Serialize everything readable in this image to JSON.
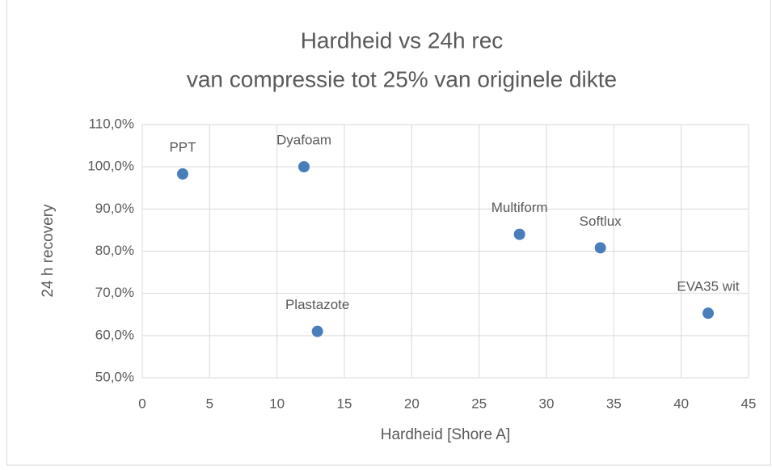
{
  "chart_data": {
    "type": "scatter",
    "title": "Hardheid vs 24h rec",
    "subtitle": "van compressie tot 25% van originele dikte",
    "x_label": "Hardheid [Shore A]",
    "y_label": "24 h recovery",
    "color": "#4a7ebb",
    "labels": [
      "PPT",
      "Dyafoam",
      "Plastazote",
      "Multiform",
      "Softlux",
      "EVA35 wit"
    ],
    "x": [
      3,
      12,
      13,
      28,
      34,
      42
    ],
    "values": [
      98.3,
      100,
      61,
      84,
      80.8,
      65.3
    ],
    "xlim": [
      0,
      45
    ],
    "xticks": [
      0,
      5,
      10,
      15,
      20,
      25,
      30,
      35,
      40,
      45
    ],
    "ylim": [
      50,
      110
    ],
    "yticks": [
      {
        "value": 50,
        "label": "50,0%"
      },
      {
        "value": 60,
        "label": "60,0%"
      },
      {
        "value": 70,
        "label": "70,0%"
      },
      {
        "value": 80,
        "label": "80,0%"
      },
      {
        "value": 90,
        "label": "90,0%"
      },
      {
        "value": 100,
        "label": "100,0%"
      },
      {
        "value": 110,
        "label": "110,0%"
      }
    ],
    "grid": true
  }
}
